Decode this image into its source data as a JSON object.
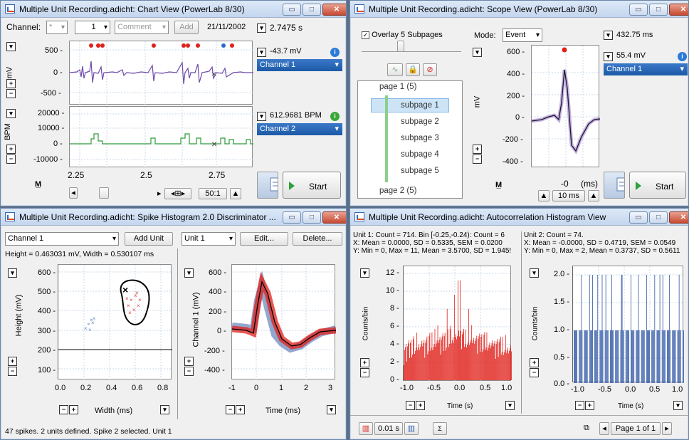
{
  "chart_view": {
    "title": "Multiple Unit Recording.adicht: Chart View (PowerLab 8/30)",
    "channel_label": "Channel:",
    "channel_value": "1",
    "comment_placeholder": "Comment",
    "add_label": "Add",
    "date": "21/11/2002",
    "time_readout": "2.7475 s",
    "ch1_ylabel": "mV",
    "ch1_ticks": [
      "500 -",
      "0 -",
      "-500 -"
    ],
    "ch1_readout": "-43.7 mV",
    "ch1_name": "Channel 1",
    "ch2_ylabel": "BPM",
    "ch2_ticks": [
      "20000 -",
      "10000 -",
      "0 -",
      "-10000 -"
    ],
    "ch2_readout": "612.9681 BPM",
    "ch2_name": "Channel 2",
    "x_ticks": [
      "2.25",
      "2.5",
      "2.75"
    ],
    "zoom": "50:1",
    "start_label": "Start"
  },
  "scope_view": {
    "title": "Multiple Unit Recording.adicht: Scope View (PowerLab 8/30)",
    "overlay_label": "Overlay 5 Subpages",
    "mode_label": "Mode:",
    "mode_value": "Event",
    "time_readout": "432.75 ms",
    "tree": [
      "page 1 (5)",
      "subpage 1",
      "subpage 2",
      "subpage 3",
      "subpage 4",
      "subpage 5",
      "page 2 (5)"
    ],
    "ylabel": "mV",
    "y_ticks": [
      "600 -",
      "400 -",
      "200 -",
      "0 -",
      "-200 -",
      "-400 -"
    ],
    "x_ticks": [
      "-0",
      "(ms)"
    ],
    "readout": "55.4 mV",
    "channel": "Channel 1",
    "timebase": "10 ms",
    "start_label": "Start"
  },
  "spike_view": {
    "title": "Multiple Unit Recording.adicht: Spike Histogram 2.0 Discriminator ...",
    "channel": "Channel 1",
    "add_unit": "Add Unit",
    "unit": "Unit 1",
    "edit": "Edit...",
    "delete": "Delete...",
    "info": "Height = 0.463031 mV, Width = 0.530107 ms",
    "left_ylabel": "Height (mV)",
    "left_yticks": [
      "600 -",
      "500 -",
      "400 -",
      "300 -",
      "200 -",
      "100 -"
    ],
    "left_xticks": [
      "0.0",
      "0.2",
      "0.4",
      "0.6",
      "0.8"
    ],
    "left_xlabel": "Width (ms)",
    "right_ylabel": "Channel 1 (mV)",
    "right_yticks": [
      "600 -",
      "400 -",
      "200 -",
      "0 -",
      "-200 -",
      "-400 -"
    ],
    "right_xticks": [
      "-1",
      "0",
      "1",
      "2",
      "3"
    ],
    "right_xlabel": "Time (ms)",
    "status": "47 spikes. 2 units defined. Spike 2 selected. Unit 1"
  },
  "autocorr_view": {
    "title": "Multiple Unit Recording.adicht: Autocorrelation Histogram View",
    "unit1_lines": [
      "Unit 1: Count = 714.  Bin [-0.25,-0.24): Count = 6",
      "X: Mean = 0.0000, SD = 0.5335, SEM = 0.0200",
      "Y: Min = 0, Max = 11, Mean = 3.5700, SD = 1.945!"
    ],
    "unit2_lines": [
      "Unit 2: Count = 74.",
      "X: Mean = -0.0000, SD = 0.4719, SEM = 0.0549",
      "Y: Min = 0, Max = 2, Mean = 0.3737, SD = 0.5611"
    ],
    "left_ylabel": "Counts/bin",
    "left_yticks": [
      "12 -",
      "10 -",
      "8 -",
      "6 -",
      "4 -",
      "2 -",
      "0 -"
    ],
    "right_yticks": [
      "2.0 -",
      "1.5 -",
      "1.0 -",
      "0.5 -",
      "0.0 -"
    ],
    "xticks": [
      "-1.0",
      "-0.5",
      "0.0",
      "0.5",
      "1.0"
    ],
    "xlabel": "Time (s)",
    "bin_width": "0.01 s",
    "page": "Page 1 of 1"
  },
  "colors": {
    "trace1": "#6f4aa8",
    "trace2": "#2e9a3a",
    "red": "#e0201a",
    "blue": "#3a5fa8"
  }
}
